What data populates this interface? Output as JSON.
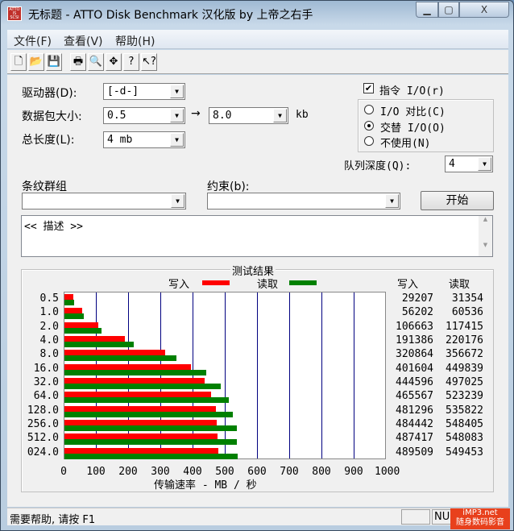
{
  "window": {
    "title": "无标题 - ATTO Disk Benchmark  汉化版 by 上帝之右手",
    "app_icon_text": "ATTO IS SCSI"
  },
  "menu": [
    "文件(F)",
    "查看(V)",
    "帮助(H)"
  ],
  "toolbar": [
    {
      "icon": "new-icon",
      "g": "🗋"
    },
    {
      "icon": "open-icon",
      "g": "📂"
    },
    {
      "icon": "save-icon",
      "g": "💾"
    },
    {
      "icon": "print-icon",
      "g": "🖶"
    },
    {
      "icon": "print-preview-icon",
      "g": "🔍"
    },
    {
      "icon": "move-icon",
      "g": "✥"
    },
    {
      "icon": "help-icon",
      "g": "?"
    },
    {
      "icon": "context-help-icon",
      "g": "↖?"
    }
  ],
  "form": {
    "drive_label": "驱动器(D):",
    "drive_value": "[-d-]",
    "transfer_label": "数据包大小:",
    "transfer_from": "0.5",
    "transfer_to": "8.0",
    "transfer_unit": "kb",
    "arrow": "→",
    "length_label": "总长度(L):",
    "length_value": "4 mb",
    "overlapped_io_label": "指令 I/O(r)",
    "overlapped_io_checked": true,
    "io_options": [
      "I/O 对比(C)",
      "交替 I/O(O)",
      "不使用(N)"
    ],
    "io_selected": 1,
    "queue_label": "队列深度(Q):",
    "queue_value": "4",
    "stripe_label": "条纹群组",
    "stripe_value": "",
    "constraint_label": "约束(b):",
    "constraint_value": "",
    "start_button": "开始",
    "description": "<< 描述 >>"
  },
  "results": {
    "title": "测试结果",
    "legend": [
      {
        "name": "写入",
        "color": "#ff0000"
      },
      {
        "name": "读取",
        "color": "#008000"
      }
    ],
    "col_write": "写入",
    "col_read": "读取",
    "xlabel": "传输速率 - MB / 秒"
  },
  "chart_data": {
    "type": "bar",
    "orientation": "horizontal",
    "title": "测试结果",
    "xlabel": "传输速率 - MB / 秒",
    "xlim": [
      0,
      1000
    ],
    "x_ticks": [
      "0",
      "100",
      "200",
      "300",
      "400",
      "500",
      "600",
      "700",
      "800",
      "900",
      "1000"
    ],
    "categories": [
      "0.5",
      "1.0",
      "2.0",
      "4.0",
      "8.0",
      "16.0",
      "32.0",
      "64.0",
      "128.0",
      "256.0",
      "512.0",
      "024.0"
    ],
    "series": [
      {
        "name": "写入",
        "color": "#ff0000",
        "values": [
          29207,
          56202,
          106663,
          191386,
          320864,
          401604,
          444596,
          465567,
          481296,
          484442,
          487417,
          489509
        ]
      },
      {
        "name": "读取",
        "color": "#008000",
        "values": [
          31354,
          60536,
          117415,
          220176,
          356672,
          449839,
          497025,
          523239,
          535822,
          548405,
          548083,
          549453
        ]
      }
    ],
    "grid": true,
    "legend": "top"
  },
  "status": {
    "text": "需要帮助, 请按 F1",
    "num": "NUM",
    "watermark": [
      "iMP3.net",
      "随身数码影音"
    ]
  }
}
